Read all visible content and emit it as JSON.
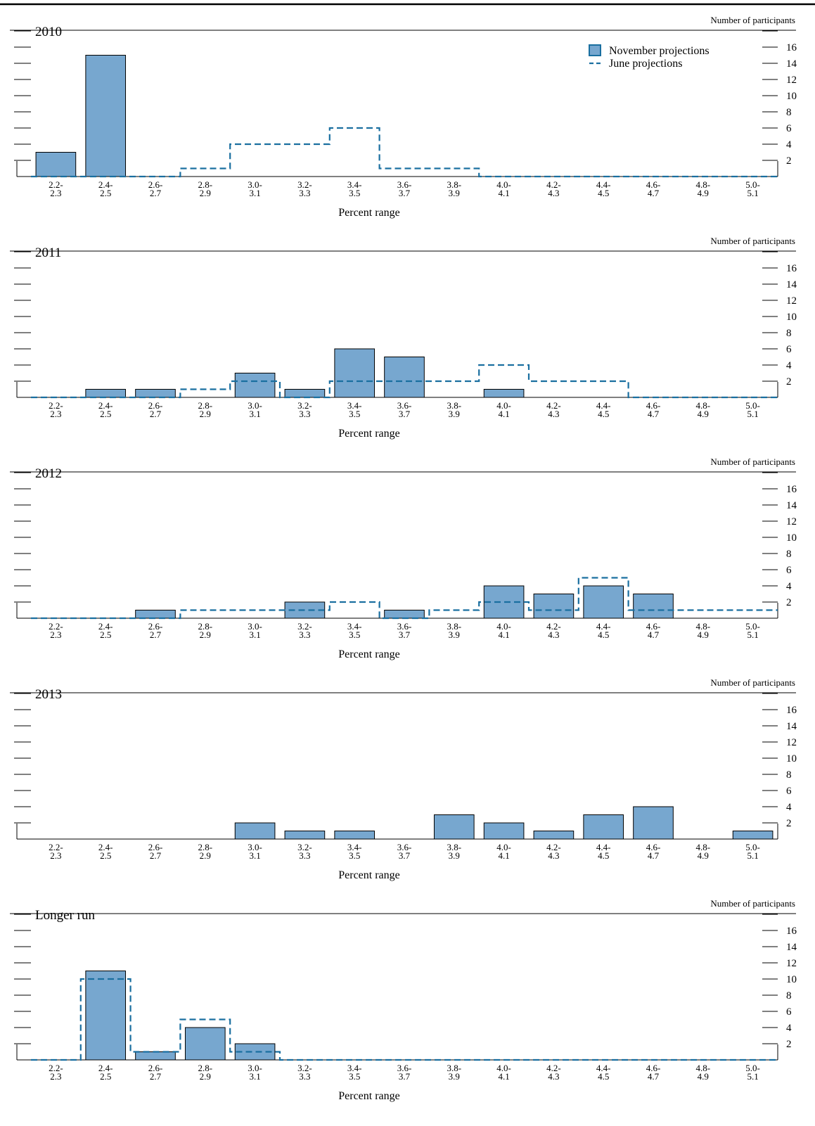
{
  "colors": {
    "bar_fill": "#77a7cf",
    "bar_stroke": "#000000",
    "june_line": "#1a6fa0",
    "axis": "#000000"
  },
  "legend": {
    "november": "November projections",
    "june": "June projections"
  },
  "y_axis_label": "Number of participants",
  "x_axis_label": "Percent range",
  "chart_data": [
    {
      "type": "bar",
      "title": "2010",
      "categories": [
        "2.2-2.3",
        "2.4-2.5",
        "2.6-2.7",
        "2.8-2.9",
        "3.0-3.1",
        "3.2-3.3",
        "3.4-3.5",
        "3.6-3.7",
        "3.8-3.9",
        "4.0-4.1",
        "4.2-4.3",
        "4.4-4.5",
        "4.6-4.7",
        "4.8-4.9",
        "5.0-5.1"
      ],
      "ylim": [
        0,
        18
      ],
      "yticks": [
        2,
        4,
        6,
        8,
        10,
        12,
        14,
        16
      ],
      "legend_position": "top-right",
      "series": [
        {
          "name": "November projections",
          "kind": "bar",
          "values": [
            3,
            15,
            0,
            0,
            0,
            0,
            0,
            0,
            0,
            0,
            0,
            0,
            0,
            0,
            0
          ]
        },
        {
          "name": "June projections",
          "kind": "step",
          "values": [
            0,
            0,
            0,
            1,
            4,
            4,
            6,
            1,
            1,
            0,
            0,
            0,
            0,
            0,
            0
          ]
        }
      ]
    },
    {
      "type": "bar",
      "title": "2011",
      "categories": [
        "2.2-2.3",
        "2.4-2.5",
        "2.6-2.7",
        "2.8-2.9",
        "3.0-3.1",
        "3.2-3.3",
        "3.4-3.5",
        "3.6-3.7",
        "3.8-3.9",
        "4.0-4.1",
        "4.2-4.3",
        "4.4-4.5",
        "4.6-4.7",
        "4.8-4.9",
        "5.0-5.1"
      ],
      "ylim": [
        0,
        18
      ],
      "yticks": [
        2,
        4,
        6,
        8,
        10,
        12,
        14,
        16
      ],
      "series": [
        {
          "name": "November projections",
          "kind": "bar",
          "values": [
            0,
            1,
            1,
            0,
            3,
            1,
            6,
            5,
            0,
            1,
            0,
            0,
            0,
            0,
            0
          ]
        },
        {
          "name": "June projections",
          "kind": "step",
          "values": [
            0,
            0,
            0,
            1,
            2,
            0,
            2,
            2,
            2,
            4,
            2,
            2,
            0,
            0,
            0
          ]
        }
      ]
    },
    {
      "type": "bar",
      "title": "2012",
      "categories": [
        "2.2-2.3",
        "2.4-2.5",
        "2.6-2.7",
        "2.8-2.9",
        "3.0-3.1",
        "3.2-3.3",
        "3.4-3.5",
        "3.6-3.7",
        "3.8-3.9",
        "4.0-4.1",
        "4.2-4.3",
        "4.4-4.5",
        "4.6-4.7",
        "4.8-4.9",
        "5.0-5.1"
      ],
      "ylim": [
        0,
        18
      ],
      "yticks": [
        2,
        4,
        6,
        8,
        10,
        12,
        14,
        16
      ],
      "series": [
        {
          "name": "November projections",
          "kind": "bar",
          "values": [
            0,
            0,
            1,
            0,
            0,
            2,
            0,
            1,
            0,
            4,
            3,
            4,
            3,
            0,
            0
          ]
        },
        {
          "name": "June projections",
          "kind": "step",
          "values": [
            0,
            0,
            0,
            1,
            1,
            1,
            2,
            0,
            1,
            2,
            1,
            5,
            1,
            1,
            1
          ]
        }
      ]
    },
    {
      "type": "bar",
      "title": "2013",
      "categories": [
        "2.2-2.3",
        "2.4-2.5",
        "2.6-2.7",
        "2.8-2.9",
        "3.0-3.1",
        "3.2-3.3",
        "3.4-3.5",
        "3.6-3.7",
        "3.8-3.9",
        "4.0-4.1",
        "4.2-4.3",
        "4.4-4.5",
        "4.6-4.7",
        "4.8-4.9",
        "5.0-5.1"
      ],
      "ylim": [
        0,
        18
      ],
      "yticks": [
        2,
        4,
        6,
        8,
        10,
        12,
        14,
        16
      ],
      "series": [
        {
          "name": "November projections",
          "kind": "bar",
          "values": [
            0,
            0,
            0,
            0,
            2,
            1,
            1,
            0,
            3,
            2,
            1,
            3,
            4,
            0,
            1
          ]
        }
      ]
    },
    {
      "type": "bar",
      "title": "Longer run",
      "categories": [
        "2.2-2.3",
        "2.4-2.5",
        "2.6-2.7",
        "2.8-2.9",
        "3.0-3.1",
        "3.2-3.3",
        "3.4-3.5",
        "3.6-3.7",
        "3.8-3.9",
        "4.0-4.1",
        "4.2-4.3",
        "4.4-4.5",
        "4.6-4.7",
        "4.8-4.9",
        "5.0-5.1"
      ],
      "ylim": [
        0,
        18
      ],
      "yticks": [
        2,
        4,
        6,
        8,
        10,
        12,
        14,
        16
      ],
      "series": [
        {
          "name": "November projections",
          "kind": "bar",
          "values": [
            0,
            11,
            1,
            4,
            2,
            0,
            0,
            0,
            0,
            0,
            0,
            0,
            0,
            0,
            0
          ]
        },
        {
          "name": "June projections",
          "kind": "step",
          "values": [
            0,
            10,
            1,
            5,
            1,
            0,
            0,
            0,
            0,
            0,
            0,
            0,
            0,
            0,
            0
          ]
        }
      ]
    }
  ]
}
